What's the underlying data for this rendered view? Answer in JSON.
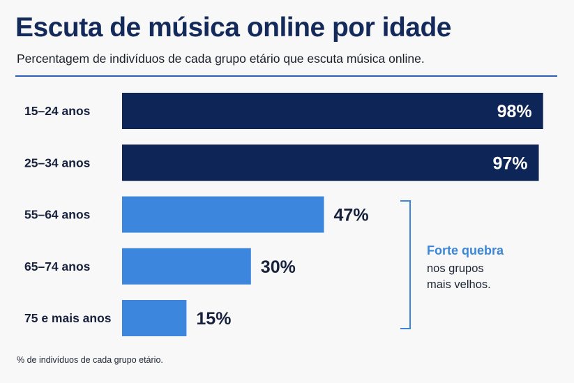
{
  "header": {
    "title": "Escuta de música online por idade",
    "subtitle": "Percentagem de indivíduos de cada grupo etário que escuta música online."
  },
  "chart_data": {
    "type": "bar",
    "orientation": "horizontal",
    "title": "Escuta de música online por idade",
    "subtitle": "Percentagem de indivíduos de cada grupo etário que escuta música online.",
    "categories": [
      "15–24 anos",
      "25–34 anos",
      "55–64 anos",
      "65–74 anos",
      "75 e mais anos"
    ],
    "values": [
      98,
      97,
      47,
      30,
      15
    ],
    "value_labels": [
      "98%",
      "97%",
      "47%",
      "30%",
      "15%"
    ],
    "value_unit": "%",
    "xlim": [
      0,
      100
    ],
    "grid": false,
    "colors": {
      "high": "#0e2558",
      "low": "#3d86de",
      "label_inside": "#ffffff",
      "label_outside": "#17213d"
    },
    "annotation": {
      "title": "Forte quebra",
      "lines": [
        "nos grupos",
        "mais velhos."
      ],
      "bracket_color": "#3b86db",
      "applies_to": [
        "55–64 anos",
        "65–74 anos",
        "75 e mais anos"
      ]
    }
  },
  "footnote": "% de indivíduos de cada grupo etário."
}
